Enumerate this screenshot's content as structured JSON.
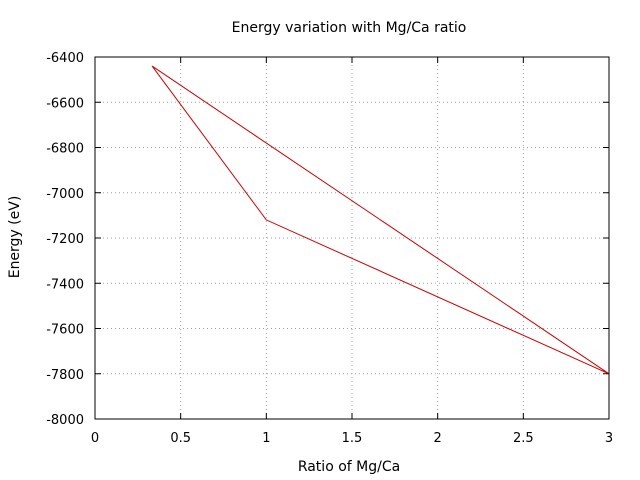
{
  "chart_data": {
    "type": "line",
    "title": "Energy variation with Mg/Ca ratio",
    "xlabel": "Ratio of Mg/Ca",
    "ylabel": "Energy (eV)",
    "xlim": [
      0,
      3
    ],
    "ylim": [
      -8000,
      -6400
    ],
    "xticks": [
      0,
      0.5,
      1,
      1.5,
      2,
      2.5,
      3
    ],
    "xtick_labels": [
      "0",
      "0.5",
      "1",
      "1.5",
      "2",
      "2.5",
      "3"
    ],
    "yticks": [
      -8000,
      -7800,
      -7600,
      -7400,
      -7200,
      -7000,
      -6800,
      -6600,
      -6400
    ],
    "ytick_labels": [
      "-8000",
      "-7800",
      "-7600",
      "-7400",
      "-7200",
      "-7000",
      "-6800",
      "-6600",
      "-6400"
    ],
    "grid": true,
    "legend": "none",
    "series": [
      {
        "color": "#cc0000",
        "x": [
          0.333,
          1,
          3,
          0.333
        ],
        "y": [
          -6440,
          -7120,
          -7800,
          -6440
        ]
      }
    ]
  }
}
